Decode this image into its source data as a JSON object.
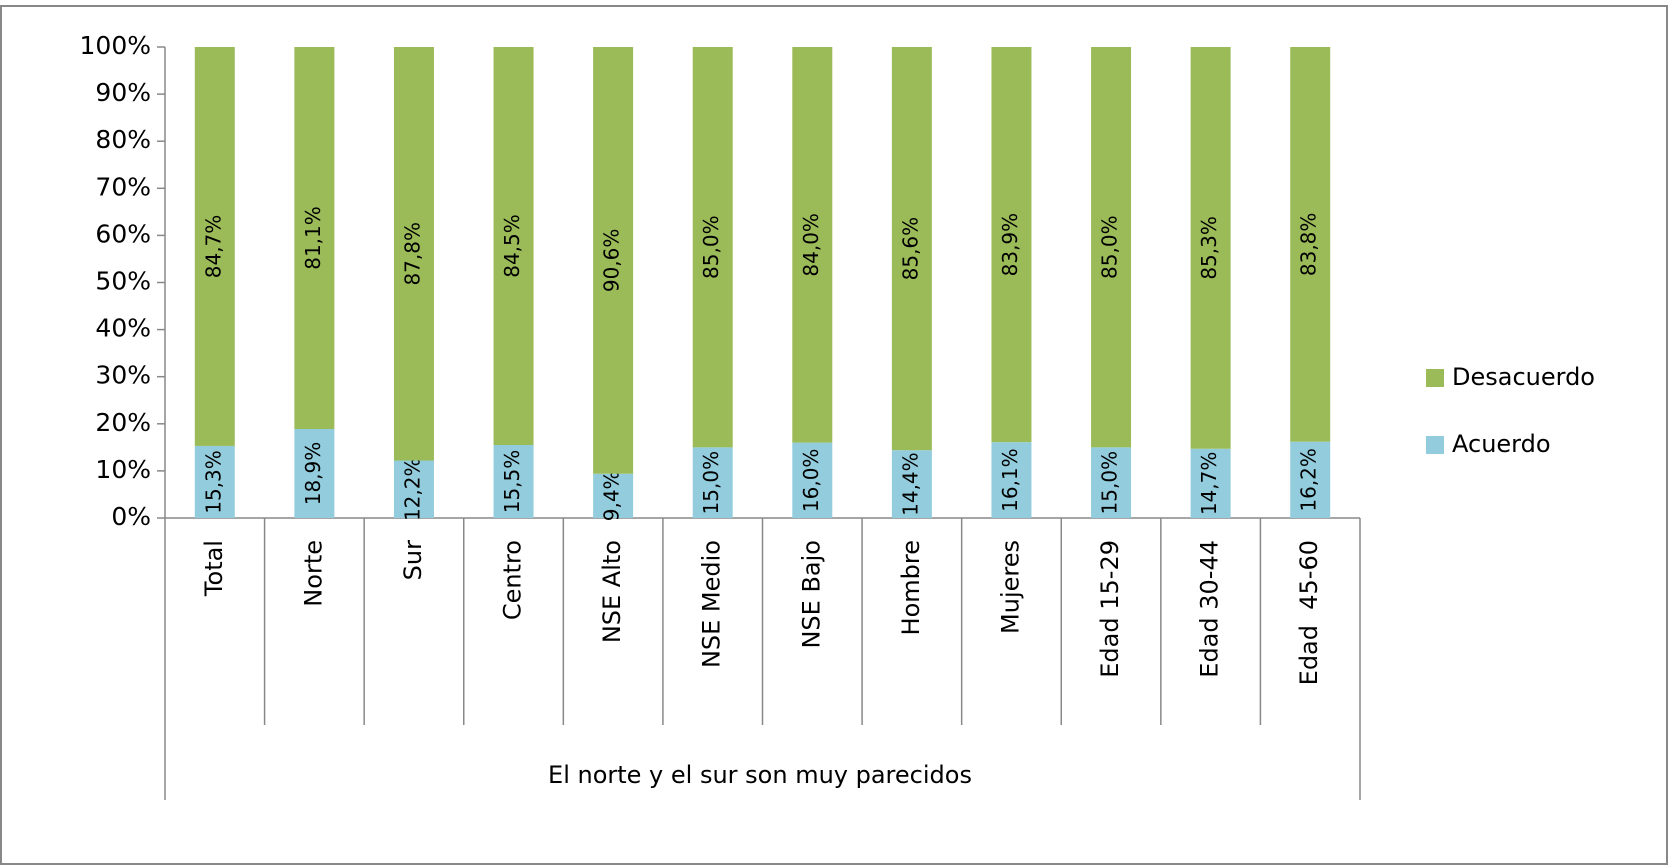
{
  "chart_data": {
    "type": "stacked_bar",
    "categories": [
      "Total",
      "Norte",
      "Sur",
      "Centro",
      "NSE Alto",
      "NSE Medio",
      "NSE Bajo",
      "Hombre",
      "Mujeres",
      "Edad 15-29",
      "Edad 30-44",
      "Edad  45-60"
    ],
    "xlabel": "El norte y el sur son muy parecidos",
    "series": [
      {
        "name": "Acuerdo",
        "color": "#93cddd",
        "values": [
          15.3,
          18.9,
          12.2,
          15.5,
          9.4,
          15.0,
          16.0,
          14.4,
          16.1,
          15.0,
          14.7,
          16.2
        ],
        "value_labels": [
          "15,3%",
          "18,9%",
          "12,2%",
          "15,5%",
          "9,4%",
          "15,0%",
          "16,0%",
          "14,4%",
          "16,1%",
          "15,0%",
          "14,7%",
          "16,2%"
        ]
      },
      {
        "name": "Desacuerdo",
        "color": "#9bbb59",
        "values": [
          84.7,
          81.1,
          87.8,
          84.5,
          90.6,
          85.0,
          84.0,
          85.6,
          83.9,
          85.0,
          85.3,
          83.8
        ],
        "value_labels": [
          "84,7%",
          "81,1%",
          "87,8%",
          "84,5%",
          "90,6%",
          "85,0%",
          "84,0%",
          "85,6%",
          "83,9%",
          "85,0%",
          "85,3%",
          "83,8%"
        ]
      }
    ],
    "ylim": [
      0,
      100
    ],
    "yticks": [
      {
        "value": 0,
        "label": "0%"
      },
      {
        "value": 10,
        "label": "10%"
      },
      {
        "value": 20,
        "label": "20%"
      },
      {
        "value": 30,
        "label": "30%"
      },
      {
        "value": 40,
        "label": "40%"
      },
      {
        "value": 50,
        "label": "50%"
      },
      {
        "value": 60,
        "label": "60%"
      },
      {
        "value": 70,
        "label": "70%"
      },
      {
        "value": 80,
        "label": "80%"
      },
      {
        "value": 90,
        "label": "90%"
      },
      {
        "value": 100,
        "label": "100%"
      }
    ],
    "legend": "right"
  }
}
